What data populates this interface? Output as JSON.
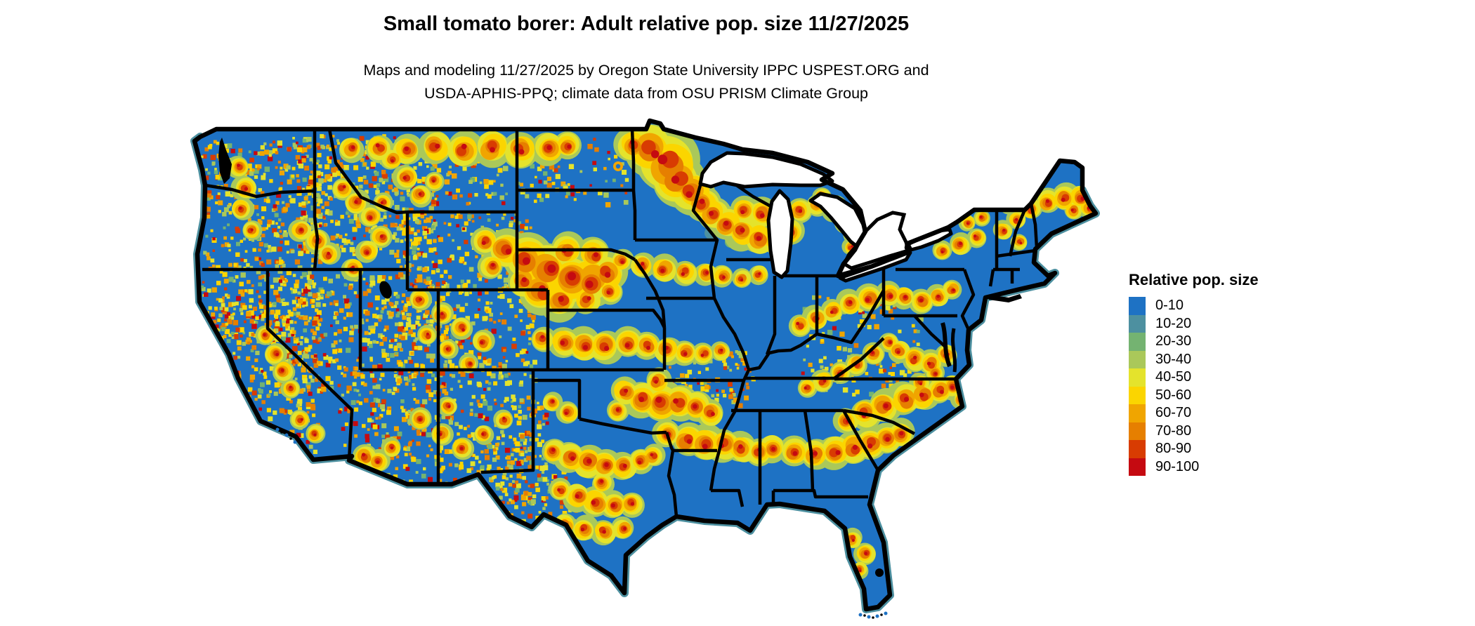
{
  "title": "Small tomato borer: Adult relative pop. size 11/27/2025",
  "subtitle_line1": "Maps and modeling 11/27/2025 by Oregon State University IPPC USPEST.ORG and",
  "subtitle_line2": "USDA-APHIS-PPQ; climate data from OSU PRISM Climate Group",
  "legend": {
    "title": "Relative pop. size",
    "items": [
      {
        "label": "0-10",
        "color": "#1e72c4"
      },
      {
        "label": "10-20",
        "color": "#4d90a0"
      },
      {
        "label": "20-30",
        "color": "#74b371"
      },
      {
        "label": "30-40",
        "color": "#aac85a"
      },
      {
        "label": "40-50",
        "color": "#e4e32c"
      },
      {
        "label": "50-60",
        "color": "#fbd500"
      },
      {
        "label": "60-70",
        "color": "#f0a500"
      },
      {
        "label": "70-80",
        "color": "#e67f00"
      },
      {
        "label": "80-90",
        "color": "#d83c02"
      },
      {
        "label": "90-100",
        "color": "#c50a11"
      }
    ]
  },
  "map": {
    "region": "Continental United States",
    "base_color": "#1e72c4",
    "water_fringe_color": "#4d90a0",
    "boundary_color": "#000000",
    "background_color": "#ffffff"
  }
}
